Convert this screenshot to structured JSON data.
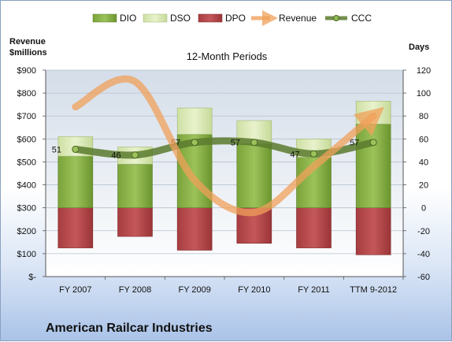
{
  "chart_data": {
    "type": "bar",
    "title": "12-Month Periods",
    "footer_title": "American Railcar Industries",
    "left_axis_label": [
      "Revenue",
      "$millions"
    ],
    "right_axis_label": "Days",
    "left_axis": {
      "min": 0,
      "max": 900,
      "step": 100,
      "tick_labels": [
        "$-",
        "$100",
        "$200",
        "$300",
        "$400",
        "$500",
        "$600",
        "$700",
        "$800",
        "$900"
      ]
    },
    "right_axis": {
      "min": -60,
      "max": 120,
      "step": 20,
      "tick_labels": [
        "-60",
        "-40",
        "-20",
        "0",
        "20",
        "40",
        "60",
        "80",
        "100",
        "120"
      ]
    },
    "categories": [
      "FY 2007",
      "FY 2008",
      "FY 2009",
      "FY 2010",
      "FY 2011",
      "TTM 9-2012"
    ],
    "legend": [
      "DIO",
      "DSO",
      "DPO",
      "Revenue",
      "CCC"
    ],
    "series": [
      {
        "name": "DIO",
        "axis": "days",
        "color": "#8cb04a",
        "values": [
          45,
          38,
          64,
          56,
          44,
          73
        ]
      },
      {
        "name": "DSO",
        "axis": "days",
        "color": "#d9e8b4",
        "values": [
          17,
          15,
          23,
          20,
          16,
          20
        ]
      },
      {
        "name": "DPO",
        "axis": "days",
        "color": "#b9494b",
        "values": [
          -35,
          -25,
          -37,
          -31,
          -35,
          -41
        ]
      },
      {
        "name": "Revenue",
        "axis": "dollars",
        "color": "#f0a05a",
        "values": [
          740,
          850,
          420,
          280,
          480,
          700
        ]
      },
      {
        "name": "CCC",
        "axis": "days",
        "color": "#5b7a2e",
        "values": [
          51,
          46,
          57,
          57,
          47,
          57
        ]
      }
    ],
    "ccc_labels": [
      "51",
      "46",
      "57",
      "57",
      "47",
      "57"
    ],
    "grid": true,
    "legend_position": "top"
  }
}
